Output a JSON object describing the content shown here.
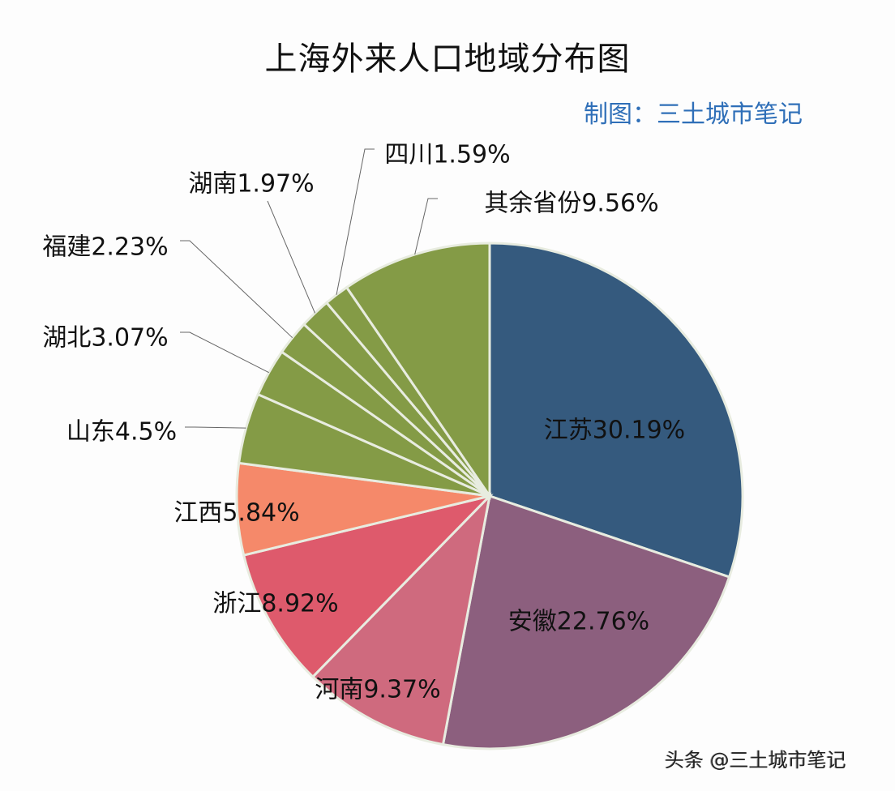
{
  "title": "上海外来人口地域分布图",
  "credit": "制图：三土城市笔记",
  "watermark": "头条 @三土城市笔记",
  "chart_data": {
    "type": "pie",
    "title": "上海外来人口地域分布图",
    "start_angle": "12 o'clock, clockwise",
    "unit": "%",
    "slices": [
      {
        "name": "江苏",
        "value": 30.19,
        "label": "江苏30.19%",
        "color": "#355a7e"
      },
      {
        "name": "安徽",
        "value": 22.76,
        "label": "安徽22.76%",
        "color": "#8c5f7e"
      },
      {
        "name": "河南",
        "value": 9.37,
        "label": "河南9.37%",
        "color": "#cf6a7e"
      },
      {
        "name": "浙江",
        "value": 8.92,
        "label": "浙江8.92%",
        "color": "#de5a6c"
      },
      {
        "name": "江西",
        "value": 5.84,
        "label": "江西5.84%",
        "color": "#f5896a"
      },
      {
        "name": "山东",
        "value": 4.5,
        "label": "山东4.5%",
        "color": "#849b46"
      },
      {
        "name": "湖北",
        "value": 3.07,
        "label": "湖北3.07%",
        "color": "#849b46"
      },
      {
        "name": "福建",
        "value": 2.23,
        "label": "福建2.23%",
        "color": "#849b46"
      },
      {
        "name": "湖南",
        "value": 1.97,
        "label": "湖南1.97%",
        "color": "#849b46"
      },
      {
        "name": "四川",
        "value": 1.59,
        "label": "四川1.59%",
        "color": "#849b46"
      },
      {
        "name": "其余省份",
        "value": 9.56,
        "label": "其余省份9.56%",
        "color": "#849b46"
      }
    ]
  }
}
